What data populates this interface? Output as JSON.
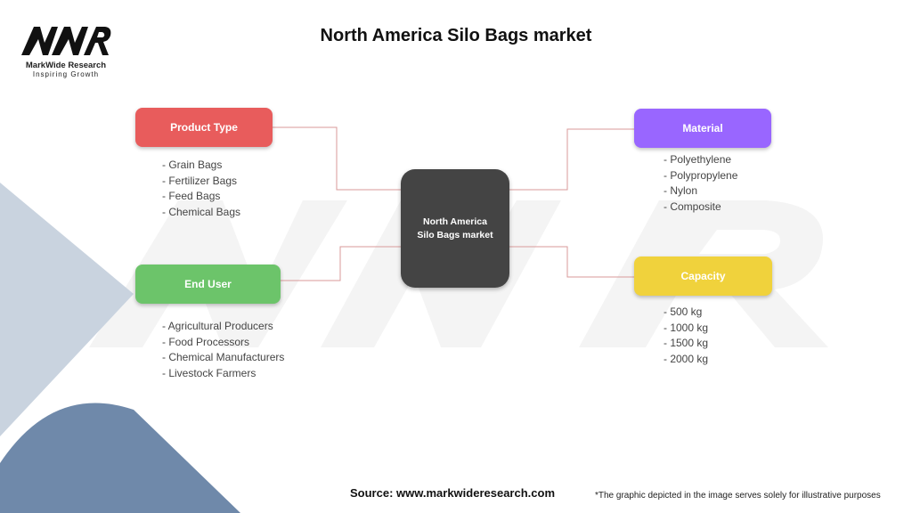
{
  "title": "North America Silo Bags market",
  "logo": {
    "mark": "MWR",
    "name": "MarkWide Research",
    "tagline": "Inspiring Growth"
  },
  "center": "North America Silo Bags market",
  "categories": [
    {
      "label": "Product Type",
      "color": "#e85c5c",
      "items": [
        "- Grain Bags",
        "- Fertilizer Bags",
        "- Feed Bags",
        "- Chemical Bags"
      ]
    },
    {
      "label": "End User",
      "color": "#6cc46a",
      "items": [
        "- Agricultural Producers",
        "- Food Processors",
        "- Chemical Manufacturers",
        "- Livestock Farmers"
      ]
    },
    {
      "label": "Material",
      "color": "#9966ff",
      "items": [
        "- Polyethylene",
        "- Polypropylene",
        "- Nylon",
        "- Composite"
      ]
    },
    {
      "label": "Capacity",
      "color": "#f0d23c",
      "items": [
        "- 500 kg",
        "- 1000 kg",
        "- 1500 kg",
        "- 2000 kg"
      ]
    }
  ],
  "connector_color": "#d99a9a",
  "source": "Source: www.markwideresearch.com",
  "note": "*The graphic depicted in the image serves solely for illustrative purposes"
}
